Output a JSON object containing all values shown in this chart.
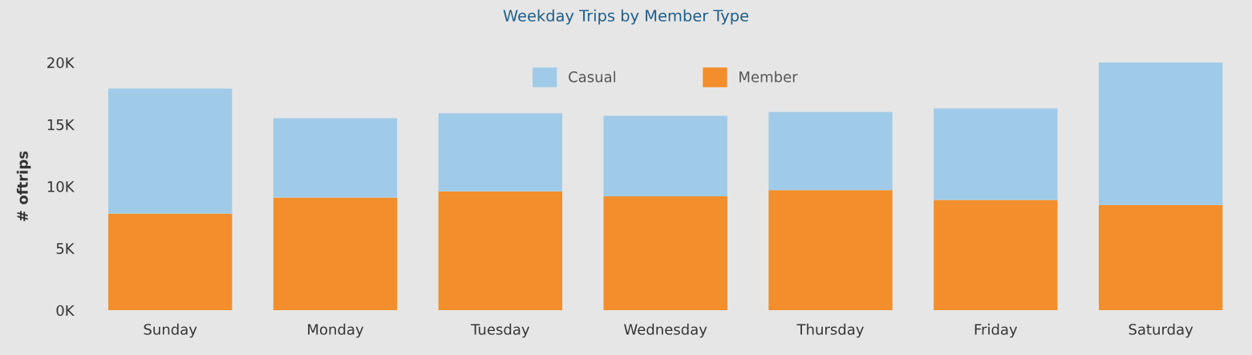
{
  "chart_data": {
    "type": "bar",
    "title": "Weekday Trips by Member Type",
    "ylabel": "# oftrips",
    "stacked": true,
    "legend": "top",
    "grid": false,
    "categories": [
      "Sunday",
      "Monday",
      "Tuesday",
      "Wednesday",
      "Thursday",
      "Friday",
      "Saturday"
    ],
    "series": [
      {
        "name": "Member",
        "color": "#f28e2b",
        "values": [
          7800,
          9100,
          9600,
          9200,
          9700,
          8900,
          8500
        ]
      },
      {
        "name": "Casual",
        "color": "#a0cbe8",
        "values": [
          10100,
          6400,
          6300,
          6500,
          6300,
          7400,
          11500
        ]
      }
    ],
    "ylim": [
      0,
      20000
    ],
    "yticks": [
      {
        "value": 0,
        "label": "0K"
      },
      {
        "value": 5000,
        "label": "5K"
      },
      {
        "value": 10000,
        "label": "10K"
      },
      {
        "value": 15000,
        "label": "15K"
      },
      {
        "value": 20000,
        "label": "20K"
      }
    ]
  }
}
